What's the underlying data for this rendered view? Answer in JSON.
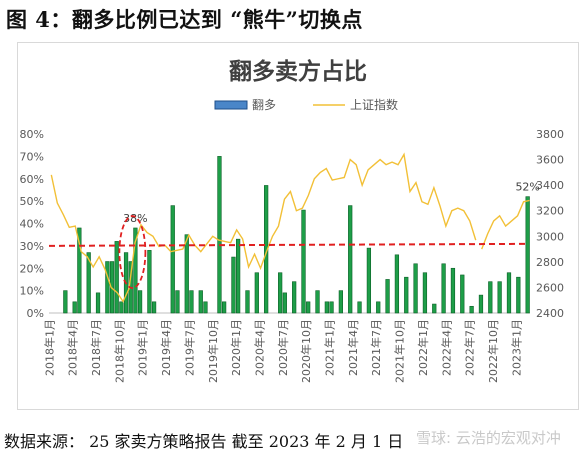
{
  "figure_title": "图 4：翻多比例已达到 “熊牛”切换点",
  "source_note": "数据来源： 25 家卖方策略报告 截至 2023 年 2 月 1 日",
  "watermark": "雪球: 云浩的宏观对冲",
  "colors": {
    "bar_fill": "#1e9e48",
    "bar_stroke": "#0c5f27",
    "legend_bar_fill": "#4a86c8",
    "line": "#f2c037",
    "threshold": "#e02020",
    "highlight": "#e02020",
    "axis_text": "#595959"
  },
  "chart_data": {
    "type": "bar",
    "title": "翻多卖方占比",
    "legend": [
      "翻多",
      "上证指数"
    ],
    "legend_position": "top-center",
    "x_tick_labels": [
      "2018年1月",
      "2018年4月",
      "2018年7月",
      "2018年10月",
      "2019年1月",
      "2019年4月",
      "2019年7月",
      "2019年10月",
      "2020年1月",
      "2020年4月",
      "2020年7月",
      "2020年10月",
      "2021年1月",
      "2021年4月",
      "2021年7月",
      "2021年10月",
      "2022年1月",
      "2022年4月",
      "2022年7月",
      "2022年10月",
      "2023年1月"
    ],
    "y_left": {
      "min": 0,
      "max": 80,
      "step": 10,
      "unit": "%"
    },
    "y_right": {
      "min": 2400,
      "max": 3800,
      "step": 200
    },
    "x_start": "2018-01",
    "series": [
      {
        "name": "翻多",
        "kind": "bar",
        "values": [
          0,
          0,
          0,
          10,
          0,
          5,
          38,
          0,
          27,
          0,
          9,
          0,
          23,
          23,
          32,
          5,
          27,
          23,
          38,
          10,
          0,
          28,
          5,
          0,
          0,
          0,
          48,
          10,
          0,
          35,
          10,
          0,
          10,
          5,
          0,
          0,
          70,
          5,
          0,
          25,
          33,
          0,
          10,
          0,
          18,
          0,
          57,
          0,
          0,
          18,
          9,
          0,
          14,
          0,
          46,
          5,
          0,
          10,
          0,
          5,
          5,
          0,
          10,
          0,
          48,
          0,
          5,
          0,
          29,
          0,
          5,
          0,
          15,
          0,
          26,
          0,
          16,
          0,
          22,
          0,
          18,
          0,
          4,
          0,
          22,
          0,
          20,
          0,
          17,
          0,
          3,
          0,
          8,
          0,
          14,
          0,
          14,
          0,
          18,
          0,
          16,
          0,
          52
        ]
      },
      {
        "name": "上证指数",
        "kind": "line",
        "axis": "right",
        "values": [
          3480,
          3260,
          3170,
          3070,
          3080,
          2880,
          2840,
          2760,
          2840,
          2740,
          2600,
          2560,
          2490,
          2590,
          2950,
          3090,
          3030,
          3000,
          2920,
          2930,
          2880,
          2890,
          2900,
          3010,
          2930,
          2880,
          2940,
          3000,
          2970,
          2960,
          2950,
          3050,
          2980,
          2760,
          2860,
          2750,
          2880,
          3000,
          3080,
          3290,
          3350,
          3200,
          3220,
          3320,
          3450,
          3500,
          3530,
          3440,
          3450,
          3460,
          3600,
          3560,
          3400,
          3520,
          3560,
          3600,
          3560,
          3580,
          3560,
          3640,
          3350,
          3420,
          3270,
          3250,
          3380,
          3240,
          3080,
          3200,
          3220,
          3200,
          3120,
          2970,
          2900,
          3020,
          3120,
          3160,
          3080,
          3120,
          3160,
          3270,
          3280
        ]
      }
    ],
    "annotations": [
      {
        "text": "38%",
        "x_index": 18,
        "y": 38
      },
      {
        "text": "52%",
        "x_index": 102,
        "y": 52
      }
    ],
    "threshold": {
      "y": 30,
      "style": "dashed"
    }
  }
}
